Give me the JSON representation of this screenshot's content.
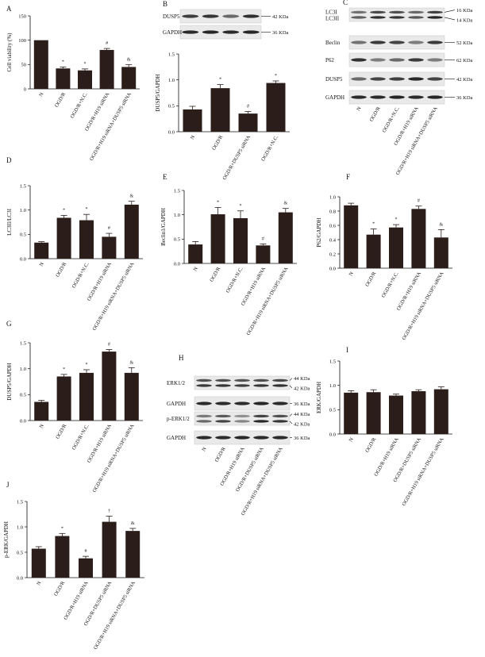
{
  "chart_data": [
    {
      "id": "A",
      "type": "bar",
      "panel_label": "A",
      "ylabel": "Cell viability (%)",
      "ylim": [
        0,
        150
      ],
      "yticks": [
        0,
        50,
        100,
        150
      ],
      "categories": [
        "N",
        "OGD/R",
        "OGD/R+N.C.",
        "OGD/R+H19 siRNA",
        "OGD/R+H19 siRNA+DUSP5 siRNA"
      ],
      "values": [
        100,
        42,
        38,
        80,
        45
      ],
      "errors": [
        0,
        3,
        3,
        3,
        5
      ],
      "annotations": [
        "",
        "*",
        "*",
        "#",
        "&"
      ]
    },
    {
      "id": "B",
      "type": "bar",
      "panel_label": "B",
      "ylabel": "DUSP5/GAPDH",
      "ylim": [
        0,
        1.5
      ],
      "yticks": [
        0.0,
        0.5,
        1.0,
        1.5
      ],
      "categories": [
        "N",
        "OGD/R",
        "OGD/R+DUSP5 siRNA",
        "OGD/R+N.C."
      ],
      "values": [
        0.43,
        0.84,
        0.35,
        0.94
      ],
      "errors": [
        0.06,
        0.07,
        0.04,
        0.04
      ],
      "annotations": [
        "",
        "*",
        "#",
        "*"
      ]
    },
    {
      "id": "D",
      "type": "bar",
      "panel_label": "D",
      "ylabel": "LC3II/LC3I",
      "ylim": [
        0,
        1.5
      ],
      "yticks": [
        0.0,
        0.5,
        1.0,
        1.5
      ],
      "categories": [
        "N",
        "OGD/R",
        "OGD/R+N.C.",
        "OGD/R+H19 siRNA",
        "OGD/R+H19 siRNA+DUSP5 siRNA"
      ],
      "values": [
        0.33,
        0.84,
        0.79,
        0.45,
        1.11
      ],
      "errors": [
        0.02,
        0.05,
        0.12,
        0.07,
        0.07
      ],
      "annotations": [
        "",
        "*",
        "*",
        "#",
        "&"
      ]
    },
    {
      "id": "E",
      "type": "bar",
      "panel_label": "E",
      "ylabel": "Beclin1/GAPDH",
      "ylim": [
        0,
        1.5
      ],
      "yticks": [
        0.0,
        0.5,
        1.0,
        1.5
      ],
      "categories": [
        "N",
        "OGD/R",
        "OGD/R+N.C.",
        "OGD/R+H19 siRNA",
        "OGD/R+H19 siRNA+DUSP5 siRNA"
      ],
      "values": [
        0.39,
        1.01,
        0.93,
        0.37,
        1.05
      ],
      "errors": [
        0.06,
        0.14,
        0.15,
        0.03,
        0.08
      ],
      "annotations": [
        "",
        "*",
        "*",
        "#",
        "&"
      ]
    },
    {
      "id": "F",
      "type": "bar",
      "panel_label": "F",
      "ylabel": "P62/GAPDH",
      "ylim": [
        0,
        1.0
      ],
      "yticks": [
        0.0,
        0.2,
        0.4,
        0.6,
        0.8,
        1.0
      ],
      "categories": [
        "N",
        "OGD/R",
        "OGD/R+N.C.",
        "OGD/R+H19 siRNA",
        "OGD/R+H19 siRNA+DUSP5 siRNA"
      ],
      "values": [
        0.88,
        0.47,
        0.57,
        0.83,
        0.43
      ],
      "errors": [
        0.03,
        0.08,
        0.04,
        0.04,
        0.11
      ],
      "annotations": [
        "",
        "*",
        "*",
        "#",
        "&"
      ]
    },
    {
      "id": "G",
      "type": "bar",
      "panel_label": "G",
      "ylabel": "DUSP5/GAPDH",
      "ylim": [
        0,
        1.5
      ],
      "yticks": [
        0.0,
        0.5,
        1.0,
        1.5
      ],
      "categories": [
        "N",
        "OGD/R",
        "OGD/R+N.C.",
        "OGD/R+H19 siRNA",
        "OGD/R+H19 siRNA+DUSP5 siRNA"
      ],
      "values": [
        0.36,
        0.85,
        0.92,
        1.33,
        0.92
      ],
      "errors": [
        0.03,
        0.04,
        0.06,
        0.04,
        0.1
      ],
      "annotations": [
        "",
        "*",
        "*",
        "#",
        "&"
      ]
    },
    {
      "id": "I",
      "type": "bar",
      "panel_label": "I",
      "ylabel": "ERK/GAPDH",
      "ylim": [
        0,
        1.5
      ],
      "yticks": [
        0.0,
        0.5,
        1.0,
        1.5
      ],
      "categories": [
        "N",
        "OGD/R",
        "OGD/R+H19 siRNA",
        "OGD/R+DUSP5 siRNA",
        "OGD/R+H19 siRNA+DUSP5 siRNA"
      ],
      "values": [
        0.85,
        0.86,
        0.79,
        0.88,
        0.92
      ],
      "errors": [
        0.04,
        0.05,
        0.03,
        0.03,
        0.05
      ],
      "annotations": [
        "",
        "",
        "",
        "",
        ""
      ]
    },
    {
      "id": "J",
      "type": "bar",
      "panel_label": "J",
      "ylabel": "p-ERK/GAPDH",
      "ylim": [
        0,
        1.5
      ],
      "yticks": [
        0.0,
        0.5,
        1.0,
        1.5
      ],
      "categories": [
        "N",
        "OGD/R",
        "OGD/R+H19 siRNA",
        "OGD/R+DUSP5 siRNA",
        "OGD/R+H19 siRNA+DUSP5 siRNA"
      ],
      "values": [
        0.57,
        0.82,
        0.38,
        1.1,
        0.92
      ],
      "errors": [
        0.04,
        0.05,
        0.04,
        0.11,
        0.05
      ],
      "annotations": [
        "",
        "*",
        "#",
        "†",
        "&"
      ]
    }
  ],
  "blots": [
    {
      "id": "B",
      "panel_label": "B",
      "lanes": 4,
      "rows": [
        {
          "label": "DUSP5",
          "mw": [
            "42 KDa"
          ],
          "bands": [
            0.78,
            0.82,
            0.55,
            0.85
          ]
        },
        {
          "label": "GAPDH",
          "mw": [
            "36 KDa"
          ],
          "bands": [
            0.88,
            0.9,
            0.88,
            0.9
          ]
        }
      ],
      "lane_labels": []
    },
    {
      "id": "C",
      "panel_label": "C",
      "lanes": 5,
      "rows": [
        {
          "label": "LC3I\nLC3II",
          "mw": [
            "16 KDa",
            "14 KDa"
          ],
          "bands": [
            0.6,
            0.85,
            0.82,
            0.65,
            0.9
          ],
          "double": true
        },
        {
          "label": "Beclin",
          "mw": [
            "52 KDa"
          ],
          "bands": [
            0.5,
            0.8,
            0.75,
            0.45,
            0.8
          ]
        },
        {
          "label": "P62",
          "mw": [
            "62 KDa"
          ],
          "bands": [
            0.85,
            0.45,
            0.55,
            0.8,
            0.45
          ]
        },
        {
          "label": "DUSP5",
          "mw": [
            "42 KDa"
          ],
          "bands": [
            0.55,
            0.75,
            0.78,
            0.9,
            0.75
          ]
        },
        {
          "label": "GAPDH",
          "mw": [
            "36 KDa"
          ],
          "bands": [
            0.88,
            0.88,
            0.9,
            0.88,
            0.9
          ]
        }
      ],
      "lane_labels": [
        "N",
        "OGD/R",
        "OGD/R+N.C.",
        "OGD/R+H19 siRNA",
        "OGD/R+H19 siRNA+DUSP5 siRNA"
      ]
    },
    {
      "id": "H",
      "panel_label": "H",
      "lanes": 5,
      "rows": [
        {
          "label": "ERK1/2",
          "mw": [
            "44 KDa",
            "42 KDa"
          ],
          "bands": [
            0.8,
            0.82,
            0.78,
            0.82,
            0.85
          ],
          "double": true
        },
        {
          "label": "GAPDH",
          "mw": [
            "36 KDa"
          ],
          "bands": [
            0.88,
            0.88,
            0.88,
            0.9,
            0.88
          ]
        },
        {
          "label": "p-ERK1/2",
          "mw": [
            "44 KDa",
            "42 KDa"
          ],
          "bands": [
            0.55,
            0.75,
            0.4,
            0.9,
            0.82
          ],
          "double": true
        },
        {
          "label": "GAPDH",
          "mw": [
            "36 KDa"
          ],
          "bands": [
            0.88,
            0.88,
            0.9,
            0.88,
            0.88
          ]
        }
      ],
      "lane_labels": [
        "N",
        "OGD/R",
        "OGD/R+H19 siRNA",
        "OGD/R+DUSP5 siRNA",
        "OGD/R+H19 siRNA+DUSP5 siRNA"
      ]
    }
  ]
}
